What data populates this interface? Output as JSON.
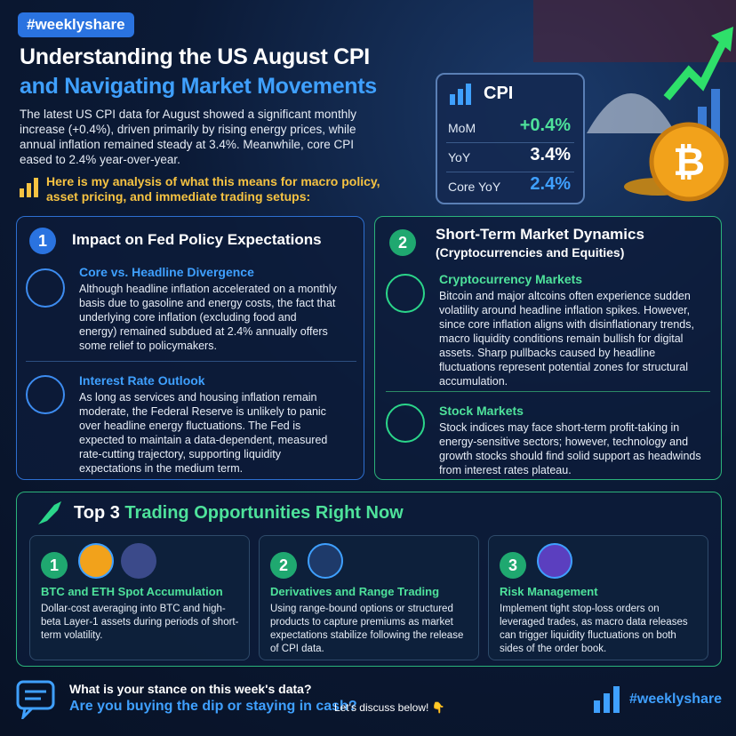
{
  "header": {
    "tag": "#weeklyshare",
    "title_line1": "Understanding the US August CPI",
    "title_line2": "and Navigating Market Movements",
    "intro": "The latest US CPI data for August showed a significant monthly increase (+0.4%), driven primarily by rising energy prices, while annual inflation remained steady at 3.4%. Meanwhile, core CPI eased to 2.4% year-over-year.",
    "analysis": "Here is my analysis of what this means for macro policy, asset pricing, and immediate trading setups:"
  },
  "cpi_card": {
    "title": "CPI",
    "rows": [
      {
        "label": "MoM",
        "value": "+0.4%"
      },
      {
        "label": "YoY",
        "value": "3.4%"
      },
      {
        "label": "Core YoY",
        "value": "2.4%"
      }
    ]
  },
  "sections": [
    {
      "number": "1",
      "title": "Impact on Fed Policy Expectations",
      "items": [
        {
          "title": "Core vs. Headline Divergence",
          "text": "Although headline inflation accelerated on a monthly basis due to gasoline and energy costs, the fact that underlying core inflation (excluding food and energy) remained subdued at 2.4% annually offers some relief to policymakers."
        },
        {
          "title": "Interest Rate Outlook",
          "text": "As long as services and housing inflation remain moderate, the Federal Reserve is unlikely to panic over headline energy fluctuations. The Fed is expected to maintain a data-dependent, measured rate-cutting trajectory, supporting liquidity expectations in the medium term."
        }
      ]
    },
    {
      "number": "2",
      "title": "Short-Term Market Dynamics",
      "subtitle": "(Cryptocurrencies and Equities)",
      "items": [
        {
          "title": "Cryptocurrency Markets",
          "text": "Bitcoin and major altcoins often experience sudden volatility around headline inflation spikes. However, since core inflation aligns with disinflationary trends, macro liquidity conditions remain bullish for digital assets. Sharp pullbacks caused by headline fluctuations represent potential zones for structural accumulation."
        },
        {
          "title": "Stock Markets",
          "text": "Stock indices may face short-term profit-taking in energy-sensitive sectors; however, technology and growth stocks should find solid support as headwinds from interest rates plateau."
        }
      ]
    }
  ],
  "opportunities": {
    "title_lead": "Top 3",
    "title_rest": "Trading Opportunities Right Now",
    "cards": [
      {
        "number": "1",
        "title": "BTC and ETH Spot Accumulation",
        "text": "Dollar-cost averaging into BTC and high-beta Layer-1 assets during periods of short-term volatility."
      },
      {
        "number": "2",
        "title": "Derivatives and Range Trading",
        "text": "Using range-bound options or structured products to capture premiums as market expectations stabilize following the release of CPI data."
      },
      {
        "number": "3",
        "title": "Risk Management",
        "text": "Implement tight stop-loss orders on leveraged trades, as macro data releases can trigger liquidity fluctuations on both sides of the order book."
      }
    ]
  },
  "footer": {
    "question": "What is your stance on this week's data?",
    "prompt": "Are you buying the dip or staying in cash?",
    "cta": "Let's discuss below! 👇",
    "tag": "#weeklyshare"
  }
}
